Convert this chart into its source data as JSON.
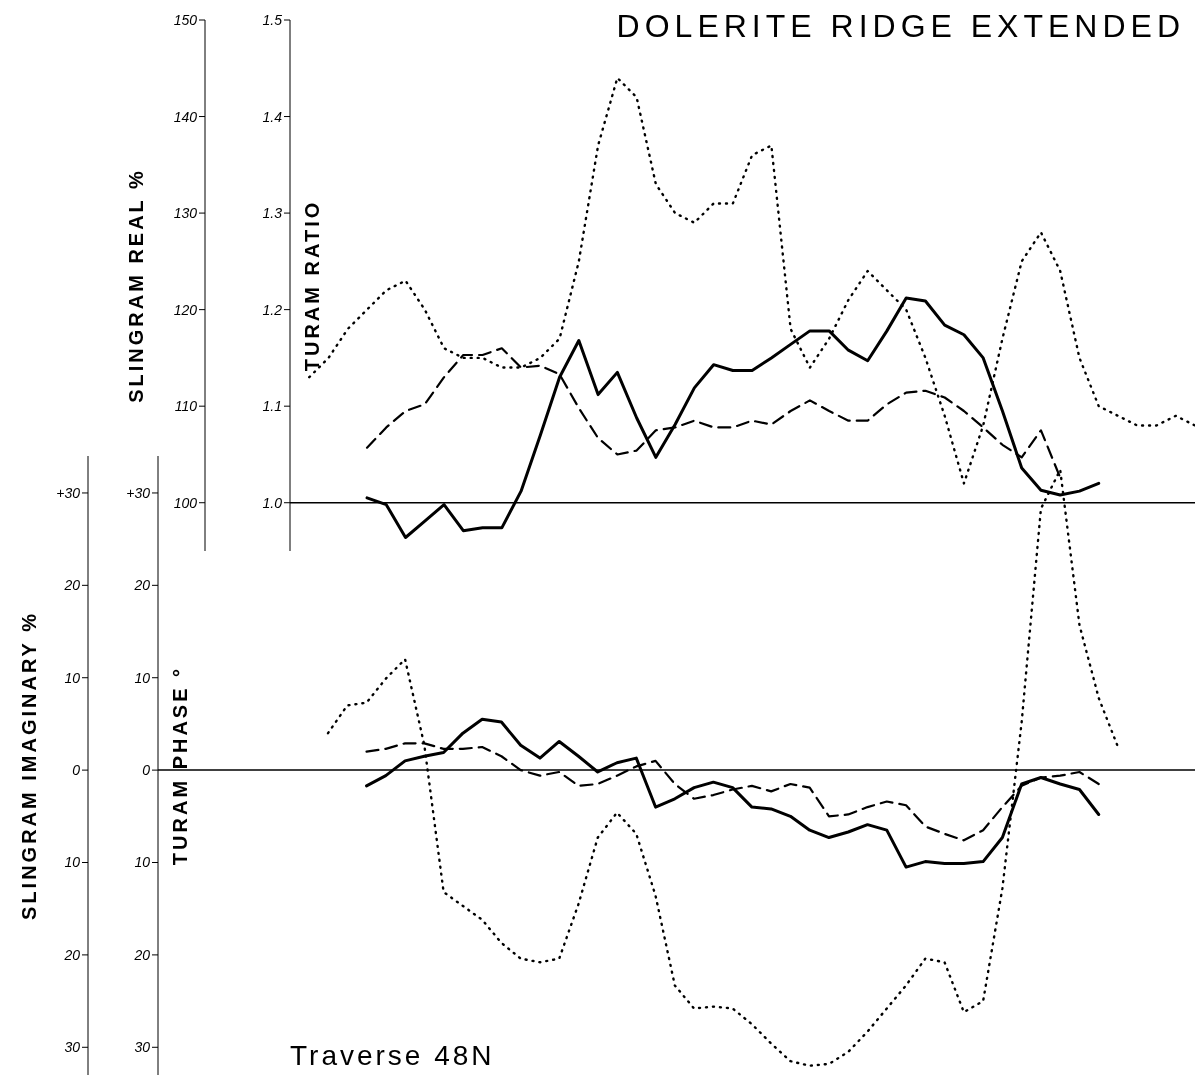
{
  "chart_data": [
    {
      "type": "line",
      "title": "DOLERITE RIDGE EXTENDED",
      "ylabel": "TURAM RATIO",
      "y2label": "SLINGRAM REAL %",
      "categories": [
        null,
        null,
        null,
        null,
        null,
        null,
        null,
        null,
        null,
        null,
        null,
        null,
        null,
        null,
        null,
        null,
        null,
        null,
        null,
        null,
        null,
        null,
        null,
        null,
        null,
        null,
        null,
        null,
        null,
        null,
        null,
        null,
        null,
        null,
        null,
        null,
        null,
        null,
        null,
        null,
        null,
        null,
        null,
        null,
        null,
        null,
        null,
        null
      ],
      "ylim": [
        0.95,
        1.5
      ],
      "yticks": [
        {
          "value": 1.0,
          "label": "1.0"
        },
        1.1,
        1.2,
        1.3,
        1.4,
        1.5
      ],
      "y2lim": [
        95,
        150
      ],
      "y2ticks": [
        100,
        110,
        120,
        130,
        140,
        150
      ],
      "ref_lines": [
        {
          "axis": "y2",
          "value": 100,
          "color": "#000000"
        }
      ],
      "series": [
        {
          "color": "#000000",
          "line_style": "solid",
          "axis": "y2",
          "values": [
            null,
            null,
            null,
            null,
            100.5,
            99.8,
            96.4,
            98.1,
            99.8,
            97.1,
            97.4,
            97.4,
            101.2,
            107,
            113,
            116.8,
            111.2,
            113.5,
            108.8,
            104.7,
            108.1,
            111.9,
            114.3,
            113.7,
            113.7,
            115,
            116.4,
            117.8,
            117.8,
            115.8,
            114.7,
            117.8,
            121.2,
            120.9,
            118.4,
            117.4,
            115,
            109.5,
            103.6,
            101.3,
            100.8,
            101.2,
            102,
            null,
            null,
            null,
            null,
            null
          ]
        },
        {
          "color": "#000000",
          "line_style": "dashed",
          "axis": "y2",
          "values": [
            null,
            null,
            null,
            null,
            105.7,
            107.8,
            109.5,
            110.2,
            113,
            115.3,
            115.3,
            116,
            114,
            114.2,
            113.3,
            109.8,
            106.7,
            105,
            105.4,
            107.5,
            107.8,
            108.5,
            107.8,
            107.8,
            108.5,
            108.1,
            109.5,
            110.6,
            109.5,
            108.5,
            108.5,
            110.2,
            111.4,
            111.6,
            110.9,
            109.5,
            107.8,
            106,
            104.7,
            107.5,
            102.6,
            null,
            null,
            null,
            null,
            null,
            null,
            null
          ]
        },
        {
          "color": "#000000",
          "line_style": "dotted",
          "values": [
            null,
            1.13,
            1.15,
            1.18,
            1.2,
            1.22,
            1.23,
            1.2,
            1.16,
            1.15,
            1.15,
            1.14,
            1.14,
            1.15,
            1.17,
            1.25,
            1.37,
            1.44,
            1.42,
            1.33,
            1.3,
            1.29,
            1.31,
            1.31,
            1.36,
            1.37,
            1.18,
            1.14,
            1.17,
            1.21,
            1.24,
            1.22,
            1.2,
            1.15,
            1.09,
            1.02,
            1.08,
            1.17,
            1.25,
            1.28,
            1.24,
            1.15,
            1.1,
            1.09,
            1.08,
            1.08,
            1.09,
            1.08
          ]
        }
      ]
    },
    {
      "type": "line",
      "ylabel": "TURAM PHASE °",
      "y2label": "SLINGRAM IMAGINARY %",
      "annotations": [
        "Traverse 48N"
      ],
      "categories": [
        null,
        null,
        null,
        null,
        null,
        null,
        null,
        null,
        null,
        null,
        null,
        null,
        null,
        null,
        null,
        null,
        null,
        null,
        null,
        null,
        null,
        null,
        null,
        null,
        null,
        null,
        null,
        null,
        null,
        null,
        null,
        null,
        null,
        null,
        null,
        null,
        null,
        null,
        null,
        null,
        null,
        null
      ],
      "ylim": [
        -33,
        34
      ],
      "yticks": [
        {
          "value": 30,
          "label": "+30"
        },
        {
          "value": 20,
          "label": "20"
        },
        {
          "value": 10,
          "label": "10"
        },
        {
          "value": 0,
          "label": "0"
        },
        {
          "value": -10,
          "label": "10"
        },
        {
          "value": -20,
          "label": "20"
        },
        {
          "value": -30,
          "label": "30"
        }
      ],
      "y2lim": [
        -33,
        34
      ],
      "y2ticks": [
        {
          "value": 30,
          "label": "+30"
        },
        {
          "value": 20,
          "label": "20"
        },
        {
          "value": 10,
          "label": "10"
        },
        {
          "value": 0,
          "label": "0"
        },
        {
          "value": -10,
          "label": "10"
        },
        {
          "value": -20,
          "label": "20"
        },
        {
          "value": -30,
          "label": "30"
        }
      ],
      "ref_lines": [
        {
          "axis": "y2",
          "value": 0,
          "color": "#000000"
        }
      ],
      "series": [
        {
          "color": "#000000",
          "line_style": "solid",
          "axis": "y2",
          "values": [
            null,
            null,
            -1.7,
            -0.6,
            1,
            1.5,
            1.9,
            4,
            5.5,
            5.2,
            2.7,
            1.3,
            3.1,
            1.5,
            -0.2,
            0.8,
            1.3,
            -4,
            -3.1,
            -1.9,
            -1.3,
            -1.9,
            -4,
            -4.2,
            -5,
            -6.5,
            -7.3,
            -6.7,
            -5.9,
            -6.5,
            -10.5,
            -9.9,
            -10.1,
            -10.1,
            -9.9,
            -7.3,
            -1.5,
            -0.8,
            -1.5,
            -2.1,
            -4.8,
            null
          ]
        },
        {
          "color": "#000000",
          "line_style": "dashed",
          "axis": "y2",
          "values": [
            null,
            null,
            2,
            2.3,
            2.9,
            2.9,
            2.3,
            2.3,
            2.5,
            1.5,
            0,
            -0.6,
            -0.2,
            -1.7,
            -1.5,
            -0.6,
            0.4,
            1,
            -1.5,
            -3.1,
            -2.7,
            -2.1,
            -1.7,
            -2.3,
            -1.5,
            -1.9,
            -5,
            -4.8,
            -4,
            -3.4,
            -3.8,
            -6.1,
            -6.9,
            -7.6,
            -6.5,
            -4,
            -1.7,
            -0.8,
            -0.6,
            -0.2,
            -1.5,
            null
          ]
        },
        {
          "color": "#000000",
          "line_style": "dotted",
          "values": [
            4,
            7,
            7.3,
            9.9,
            12,
            2.7,
            -13.2,
            -14.7,
            -16.2,
            -18.7,
            -20.4,
            -20.8,
            -20.4,
            -14.5,
            -7.3,
            -4.6,
            -6.9,
            -13.6,
            -23.3,
            -25.8,
            -25.6,
            -25.8,
            -27.5,
            -29.6,
            -31.5,
            -32,
            -31.8,
            -30.5,
            -28.3,
            -25.8,
            -23.3,
            -20.4,
            -20.8,
            -26.2,
            -25,
            -12.8,
            5.2,
            28.3,
            32.5,
            15.7,
            7.8,
            2.5
          ]
        }
      ]
    }
  ]
}
